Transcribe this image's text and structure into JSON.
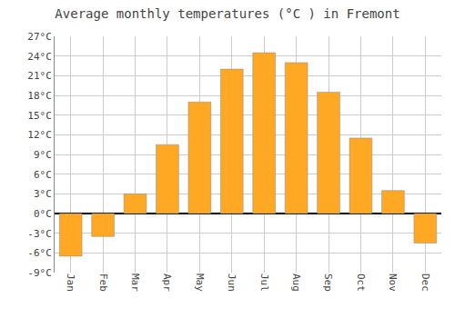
{
  "chart_data": {
    "type": "bar",
    "title": "Average monthly temperatures (°C ) in Fremont",
    "categories": [
      "Jan",
      "Feb",
      "Mar",
      "Apr",
      "May",
      "Jun",
      "Jul",
      "Aug",
      "Sep",
      "Oct",
      "Nov",
      "Dec"
    ],
    "values": [
      -6.5,
      -3.5,
      3.0,
      10.5,
      17.0,
      22.0,
      24.5,
      23.0,
      18.5,
      11.5,
      3.5,
      -4.5
    ],
    "color": "#FFA824",
    "ylim": [
      -9,
      27
    ],
    "yticks": [
      {
        "value": -9,
        "label": "-9°C"
      },
      {
        "value": -6,
        "label": "-6°C"
      },
      {
        "value": -3,
        "label": "-3°C"
      },
      {
        "value": 0,
        "label": "0°C"
      },
      {
        "value": 3,
        "label": "3°C"
      },
      {
        "value": 6,
        "label": "6°C"
      },
      {
        "value": 9,
        "label": "9°C"
      },
      {
        "value": 12,
        "label": "12°C"
      },
      {
        "value": 15,
        "label": "15°C"
      },
      {
        "value": 18,
        "label": "18°C"
      },
      {
        "value": 21,
        "label": "21°C"
      },
      {
        "value": 24,
        "label": "24°C"
      },
      {
        "value": 27,
        "label": "27°C"
      }
    ],
    "grid": true
  }
}
